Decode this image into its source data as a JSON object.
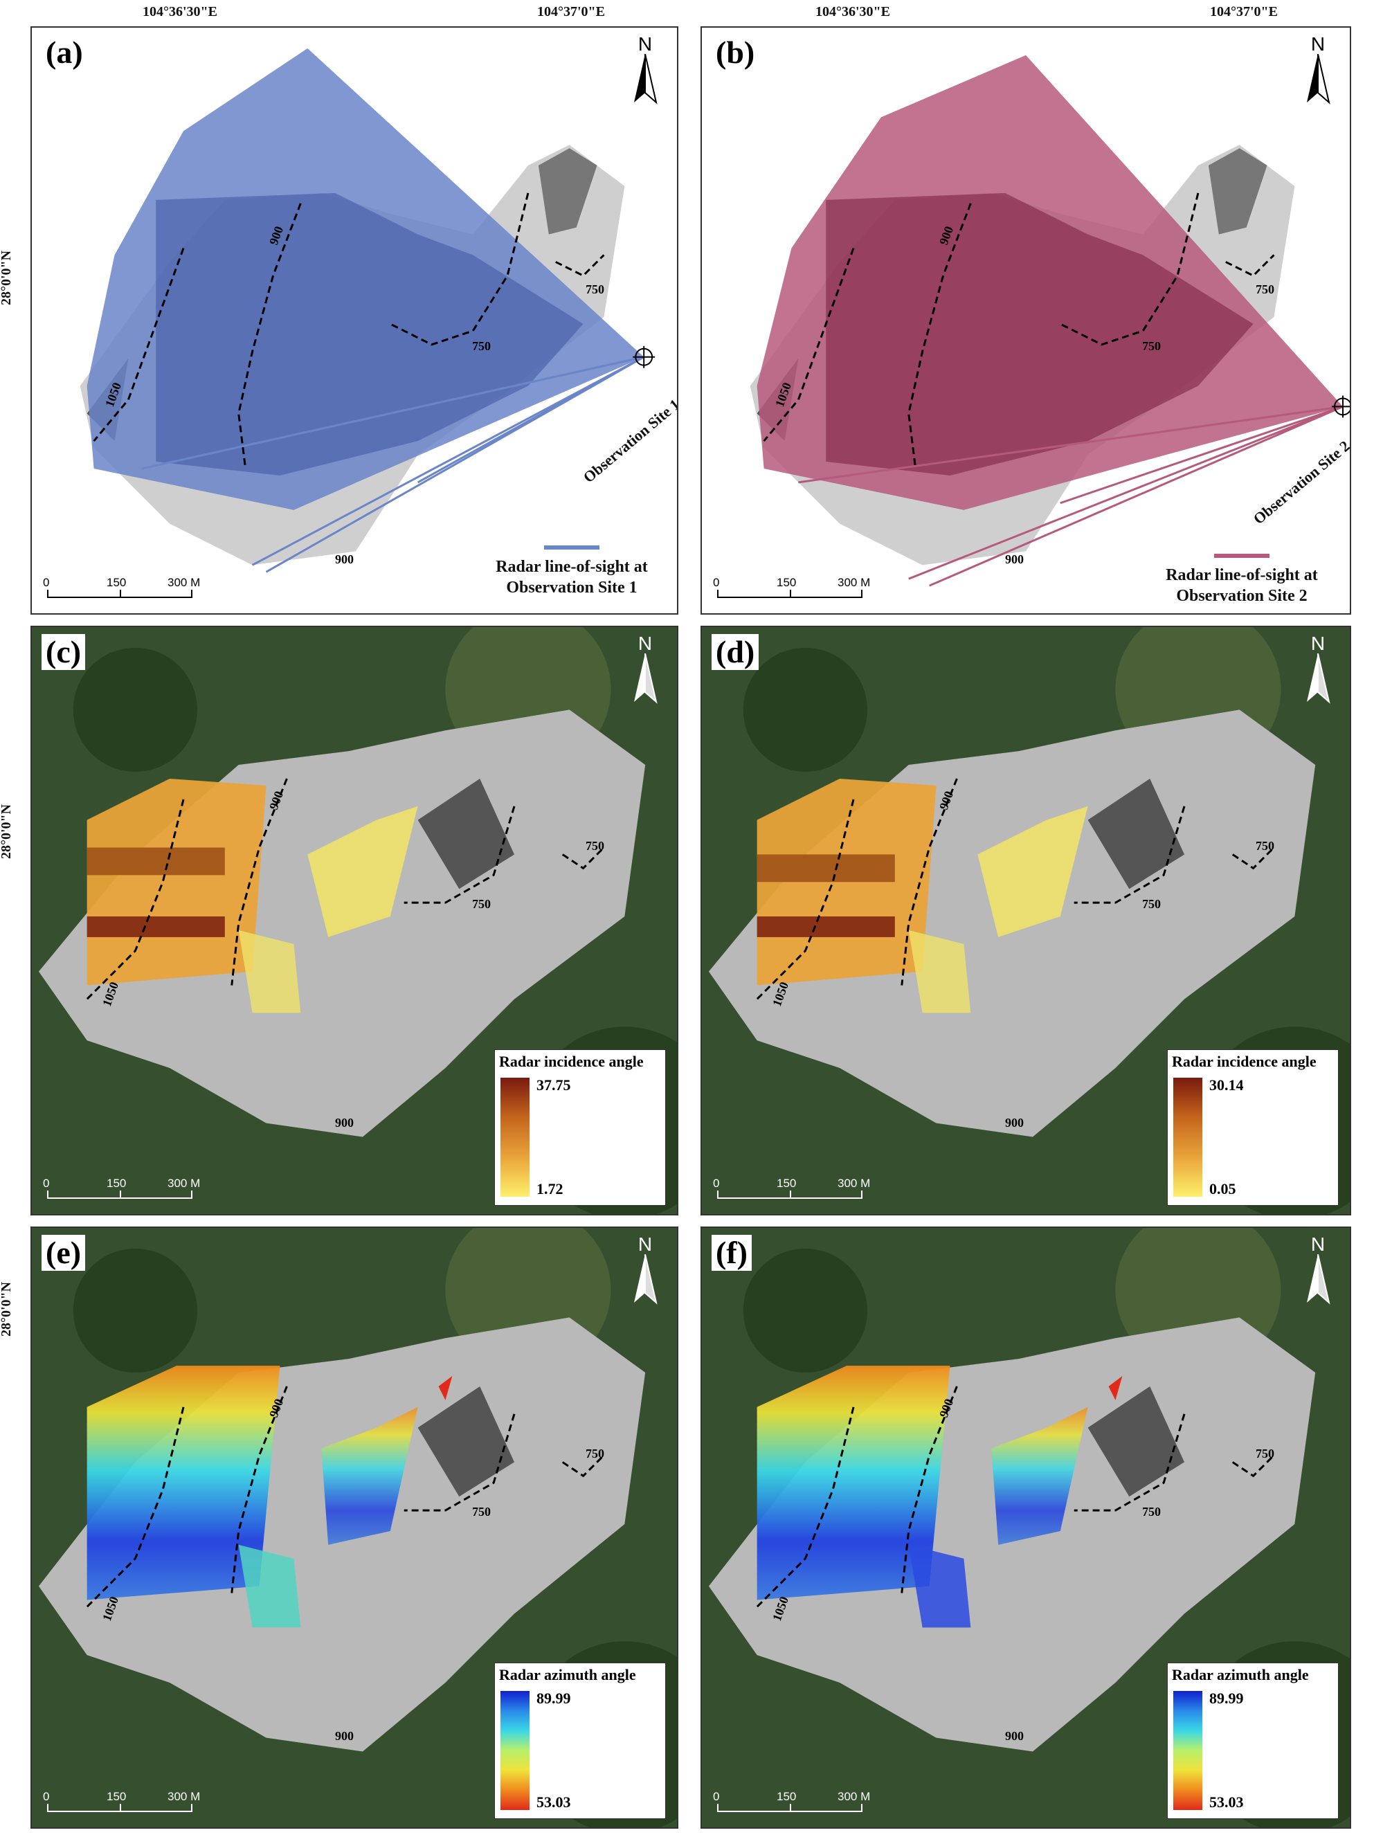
{
  "coords": {
    "lon1": "104°36'30\"E",
    "lon2": "104°37'0\"E",
    "lat": "28°0'0\"N"
  },
  "common": {
    "north": "N",
    "scale_0": "0",
    "scale_150": "150",
    "scale_300": "300 M",
    "contours": [
      "1050",
      "900",
      "750",
      "750",
      "900"
    ]
  },
  "panels": {
    "a": {
      "label": "(a)",
      "site": "Observation Site 1",
      "legend_line1": "Radar line-of-sight at",
      "legend_line2": "Observation Site 1",
      "color": "#6b85c9"
    },
    "b": {
      "label": "(b)",
      "site": "Observation Site 2",
      "legend_line1": "Radar line-of-sight at",
      "legend_line2": "Observation Site 2",
      "color": "#b65a7d"
    },
    "c": {
      "label": "(c)",
      "legend_title": "Radar incidence angle",
      "max": "37.75",
      "min": "1.72"
    },
    "d": {
      "label": "(d)",
      "legend_title": "Radar incidence angle",
      "max": "30.14",
      "min": "0.05"
    },
    "e": {
      "label": "(e)",
      "legend_title": "Radar azimuth angle",
      "max": "89.99",
      "min": "53.03"
    },
    "f": {
      "label": "(f)",
      "legend_title": "Radar azimuth angle",
      "max": "89.99",
      "min": "53.03"
    }
  }
}
